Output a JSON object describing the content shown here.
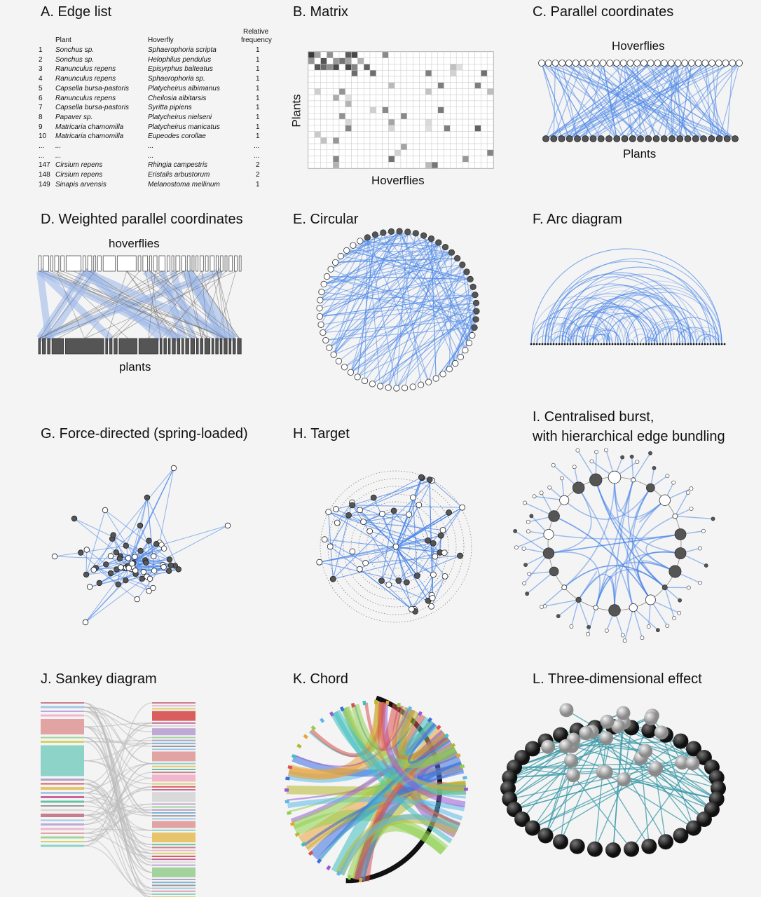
{
  "panels": {
    "a": {
      "title": "A. Edge list"
    },
    "b": {
      "title": "B. Matrix",
      "ylabel": "Plants",
      "xlabel": "Hoverflies"
    },
    "c": {
      "title": "C. Parallel coordinates",
      "top_label": "Hoverflies",
      "bottom_label": "Plants"
    },
    "d": {
      "title": "D. Weighted parallel coordinates",
      "top_label": "hoverflies",
      "bottom_label": "plants"
    },
    "e": {
      "title": "E. Circular"
    },
    "f": {
      "title": "F. Arc diagram"
    },
    "g": {
      "title": "G. Force-directed (spring-loaded)"
    },
    "h": {
      "title": "H. Target"
    },
    "i": {
      "title_line1": "I. Centralised burst,",
      "title_line2": "with hierarchical edge bundling"
    },
    "j": {
      "title": "J. Sankey diagram"
    },
    "k": {
      "title": "K. Chord"
    },
    "l": {
      "title": "L. Three-dimensional effect"
    }
  },
  "edge_list": {
    "headers": {
      "plant": "Plant",
      "hoverfly": "Hoverfly",
      "freq_line1": "Relative",
      "freq_line2": "frequency"
    },
    "rows": [
      {
        "n": "1",
        "plant": "Sonchus sp.",
        "hoverfly": "Sphaerophoria scripta",
        "freq": "1"
      },
      {
        "n": "2",
        "plant": "Sonchus sp.",
        "hoverfly": "Helophilus pendulus",
        "freq": "1"
      },
      {
        "n": "3",
        "plant": "Ranunculus repens",
        "hoverfly": "Episyrphus balteatus",
        "freq": "1"
      },
      {
        "n": "4",
        "plant": "Ranunculus repens",
        "hoverfly": "Sphaerophoria  sp.",
        "freq": "1"
      },
      {
        "n": "5",
        "plant": "Capsella bursa-pastoris",
        "hoverfly": "Platycheirus albimanus",
        "freq": "1"
      },
      {
        "n": "6",
        "plant": "Ranunculus repens",
        "hoverfly": "Cheilosia albitarsis",
        "freq": "1"
      },
      {
        "n": "7",
        "plant": "Capsella bursa-pastoris",
        "hoverfly": "Syritta pipiens",
        "freq": "1"
      },
      {
        "n": "8",
        "plant": "Papaver sp.",
        "hoverfly": "Platycheirus nielseni",
        "freq": "1"
      },
      {
        "n": "9",
        "plant": "Matricaria chamomilla",
        "hoverfly": "Platycheirus manicatus",
        "freq": "1"
      },
      {
        "n": "10",
        "plant": "Matricaria chamomilla",
        "hoverfly": "Eupeodes corollae",
        "freq": "1"
      },
      {
        "n": "...",
        "plant": "...",
        "hoverfly": "...",
        "freq": "..."
      },
      {
        "n": "...",
        "plant": "...",
        "hoverfly": "...",
        "freq": "..."
      },
      {
        "n": "147",
        "plant": "Cirsium repens",
        "hoverfly": "Rhingia campestris",
        "freq": "2"
      },
      {
        "n": "148",
        "plant": "Cirsium repens",
        "hoverfly": "Eristalis arbustorum",
        "freq": "2"
      },
      {
        "n": "149",
        "plant": "Sinapis arvensis",
        "hoverfly": "Melanostoma mellinum",
        "freq": "1"
      }
    ]
  },
  "colors": {
    "edge_blue": "#4a86e8",
    "plant_node": "#555555",
    "hoverfly_node": "#ffffff",
    "background": "#f4f4f4"
  }
}
